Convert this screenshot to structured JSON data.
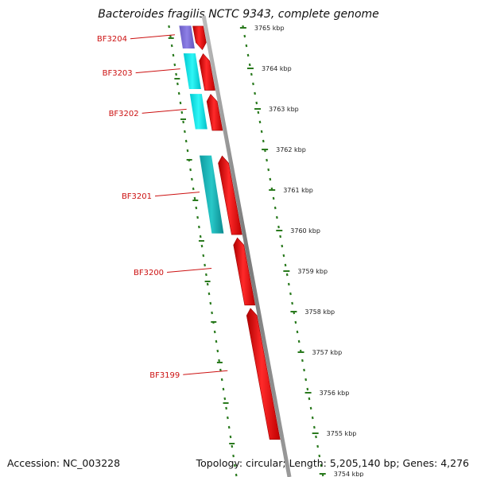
{
  "title": "Bacteroides fragilis NCTC 9343, complete genome",
  "footer": {
    "accession": "Accession: NC_003228",
    "summary": "Topology: circular; Length: 5,205,140 bp; Genes: 4,276"
  },
  "colors": {
    "forward_gene": "#ee1111",
    "cds_cyan": "#00e5e5",
    "cds_teal": "#17b8b8",
    "cds_purple": "#7f70d8",
    "backbone": "#8c8c8c",
    "tick": "#2a7a1e",
    "label": "#cc1111"
  },
  "ticks": [
    "3765 kbp",
    "3764 kbp",
    "3763 kbp",
    "3762 kbp",
    "3761 kbp",
    "3760 kbp",
    "3759 kbp",
    "3758 kbp",
    "3757 kbp",
    "3756 kbp",
    "3755 kbp",
    "3754 kbp"
  ],
  "genes": [
    {
      "name": "BF3204",
      "start": 3765.08,
      "end": 3764.46,
      "cds": "purple"
    },
    {
      "name": "BF3203",
      "start": 3764.4,
      "end": 3763.46,
      "cds": "cyan"
    },
    {
      "name": "BF3202",
      "start": 3763.4,
      "end": 3762.47,
      "cds": "cyan"
    },
    {
      "name": "BF3201",
      "start": 3761.88,
      "end": 3759.9,
      "cds": "teal"
    },
    {
      "name": "BF3200",
      "start": 3759.86,
      "end": 3758.16,
      "cds": null
    },
    {
      "name": "BF3199",
      "start": 3758.12,
      "end": 3754.85,
      "cds": null
    }
  ]
}
